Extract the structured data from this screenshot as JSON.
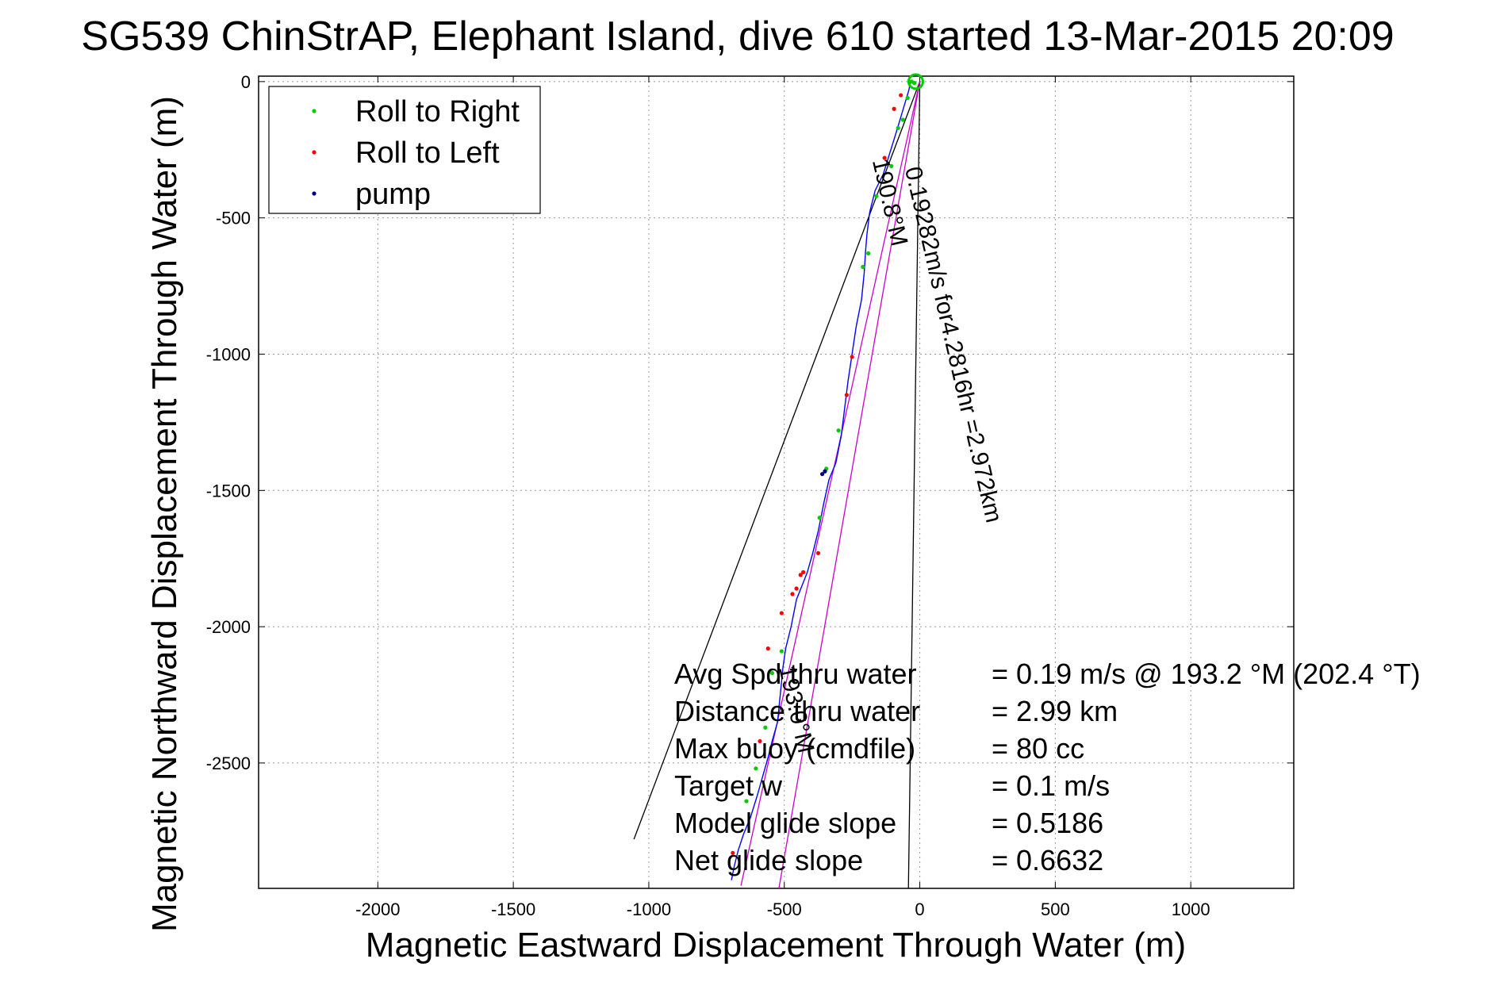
{
  "chart_data": {
    "type": "scatter",
    "title": "SG539 ChinStrAP, Elephant Island, dive 610 started 13-Mar-2015 20:09",
    "xlabel": "Magnetic Eastward Displacement Through Water (m)",
    "ylabel": "Magnetic Northward Displacement Through Water (m)",
    "xlim": [
      -2440,
      1380
    ],
    "ylim": [
      -2960,
      20
    ],
    "xticks": [
      -2000,
      -1500,
      -1000,
      -500,
      0,
      500,
      1000
    ],
    "yticks": [
      0,
      -500,
      -1000,
      -1500,
      -2000,
      -2500
    ],
    "grid": true,
    "legend": {
      "placement": "top-left",
      "entries": [
        {
          "label": "Roll to Right",
          "color": "#00cc00"
        },
        {
          "label": "Roll to Left",
          "color": "#ff0000"
        },
        {
          "label": "pump",
          "color": "#000080"
        }
      ]
    },
    "track": {
      "name": "glider track",
      "color": "#0000ff",
      "x": [
        -35,
        -40,
        -55,
        -70,
        -85,
        -110,
        -135,
        -165,
        -185,
        -195,
        -200,
        -205,
        -215,
        -235,
        -250,
        -265,
        -275,
        -290,
        -310,
        -335,
        -355,
        -375,
        -395,
        -415,
        -435,
        -455,
        -475,
        -495,
        -505,
        -515,
        -525,
        -545,
        -560,
        -580,
        -600,
        -625,
        -650,
        -670,
        -685,
        -695
      ],
      "y": [
        0,
        -30,
        -80,
        -130,
        -180,
        -260,
        -340,
        -400,
        -480,
        -560,
        -620,
        -700,
        -800,
        -900,
        -1000,
        -1100,
        -1180,
        -1300,
        -1400,
        -1460,
        -1550,
        -1650,
        -1730,
        -1800,
        -1850,
        -1900,
        -2000,
        -2080,
        -2150,
        -2250,
        -2350,
        -2420,
        -2480,
        -2550,
        -2620,
        -2700,
        -2760,
        -2820,
        -2880,
        -2930
      ]
    },
    "roll_right": {
      "x": [
        -30,
        -20,
        -45,
        -62,
        -80,
        -105,
        -160,
        -190,
        -210,
        -300,
        -345,
        -370,
        -510,
        -545,
        -570,
        -605,
        -640
      ],
      "y": [
        0,
        -5,
        -60,
        -140,
        -170,
        -310,
        -420,
        -630,
        -680,
        -1280,
        -1420,
        -1600,
        -2090,
        -2170,
        -2370,
        -2520,
        -2640
      ]
    },
    "roll_left": {
      "x": [
        -70,
        -95,
        -130,
        -250,
        -270,
        -375,
        -430,
        -440,
        -455,
        -470,
        -510,
        -560,
        -590,
        -690
      ],
      "y": [
        -50,
        -100,
        -280,
        -1010,
        -1150,
        -1730,
        -1800,
        -1810,
        -1860,
        -1880,
        -1950,
        -2080,
        -2420,
        -2830
      ],
      "pump": {
        "x": [
          -350,
          -360
        ],
        "y": [
          -1430,
          -1440
        ]
      }
    },
    "lines": [
      {
        "name": "net-displacement",
        "color": "#000000",
        "x": [
          0,
          -1055
        ],
        "y": [
          0,
          -2780
        ]
      },
      {
        "name": "heading-line",
        "color": "#000000",
        "x": [
          0,
          -42
        ],
        "y": [
          0,
          -2960
        ]
      },
      {
        "name": "current-line",
        "color": "#cc00cc",
        "x": [
          0,
          -660
        ],
        "y": [
          0,
          -2950
        ]
      },
      {
        "name": "magenta-line",
        "color": "#cc00cc",
        "x": [
          0,
          -520
        ],
        "y": [
          0,
          -2960
        ]
      }
    ],
    "track_labels": [
      {
        "text": "0.19282m/s for4.2816hr =2.972km",
        "x": -55,
        "y": -320,
        "angle": 77
      },
      {
        "text": "190.8°M",
        "x": -175,
        "y": -290,
        "angle": 77
      },
      {
        "text": "193.0°M",
        "x": -520,
        "y": -2150,
        "angle": 77
      }
    ],
    "annotations": [
      {
        "label": "Avg Spd thru water",
        "value": "=  0.19 m/s @ 193.2 °M (202.4 °T)"
      },
      {
        "label": "Distance thru water",
        "value": "=  2.99 km"
      },
      {
        "label": "Max buoy (cmdfile)",
        "value": "= 80 cc"
      },
      {
        "label": "Target w",
        "value": "= 0.1 m/s"
      },
      {
        "label": "Model glide slope",
        "value": "= 0.5186"
      },
      {
        "label": "Net glide slope",
        "value": "= 0.6632"
      }
    ]
  }
}
